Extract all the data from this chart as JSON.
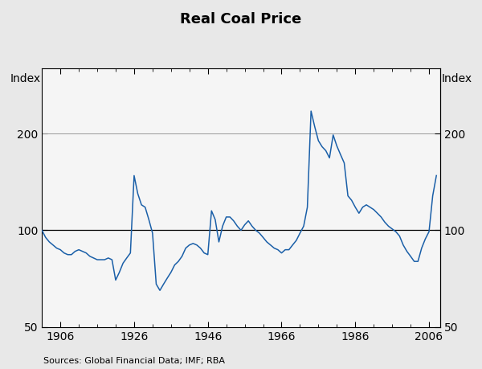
{
  "title": "Real Coal Price",
  "ylabel_left": "Index",
  "ylabel_right": "Index",
  "source": "Sources: Global Financial Data; IMF; RBA",
  "line_color": "#1a5fa8",
  "fig_facecolor": "#e8e8e8",
  "plot_facecolor": "#f5f5f5",
  "yticks": [
    50,
    100,
    200
  ],
  "ylim_log": [
    50,
    320
  ],
  "xlim": [
    1901,
    2009
  ],
  "xticks": [
    1906,
    1926,
    1946,
    1966,
    1986,
    2006
  ],
  "years": [
    1901,
    1902,
    1903,
    1904,
    1905,
    1906,
    1907,
    1908,
    1909,
    1910,
    1911,
    1912,
    1913,
    1914,
    1915,
    1916,
    1917,
    1918,
    1919,
    1920,
    1921,
    1922,
    1923,
    1924,
    1925,
    1926,
    1927,
    1928,
    1929,
    1930,
    1931,
    1932,
    1933,
    1934,
    1935,
    1936,
    1937,
    1938,
    1939,
    1940,
    1941,
    1942,
    1943,
    1944,
    1945,
    1946,
    1947,
    1948,
    1949,
    1950,
    1951,
    1952,
    1953,
    1954,
    1955,
    1956,
    1957,
    1958,
    1959,
    1960,
    1961,
    1962,
    1963,
    1964,
    1965,
    1966,
    1967,
    1968,
    1969,
    1970,
    1971,
    1972,
    1973,
    1974,
    1975,
    1976,
    1977,
    1978,
    1979,
    1980,
    1981,
    1982,
    1983,
    1984,
    1985,
    1986,
    1987,
    1988,
    1989,
    1990,
    1991,
    1992,
    1993,
    1994,
    1995,
    1996,
    1997,
    1998,
    1999,
    2000,
    2001,
    2002,
    2003,
    2004,
    2005,
    2006,
    2007,
    2008
  ],
  "values": [
    100,
    95,
    92,
    90,
    88,
    87,
    85,
    84,
    84,
    86,
    87,
    86,
    85,
    83,
    82,
    81,
    81,
    81,
    82,
    81,
    70,
    74,
    79,
    82,
    85,
    148,
    130,
    120,
    118,
    108,
    98,
    68,
    65,
    68,
    71,
    74,
    78,
    80,
    83,
    88,
    90,
    91,
    90,
    88,
    85,
    84,
    115,
    108,
    92,
    103,
    110,
    110,
    107,
    103,
    100,
    104,
    107,
    103,
    100,
    98,
    95,
    92,
    90,
    88,
    87,
    85,
    87,
    87,
    90,
    93,
    98,
    103,
    118,
    235,
    210,
    190,
    182,
    177,
    168,
    198,
    183,
    172,
    162,
    128,
    124,
    118,
    113,
    118,
    120,
    118,
    116,
    113,
    110,
    106,
    103,
    101,
    99,
    96,
    90,
    86,
    83,
    80,
    80,
    88,
    94,
    99,
    128,
    148
  ]
}
